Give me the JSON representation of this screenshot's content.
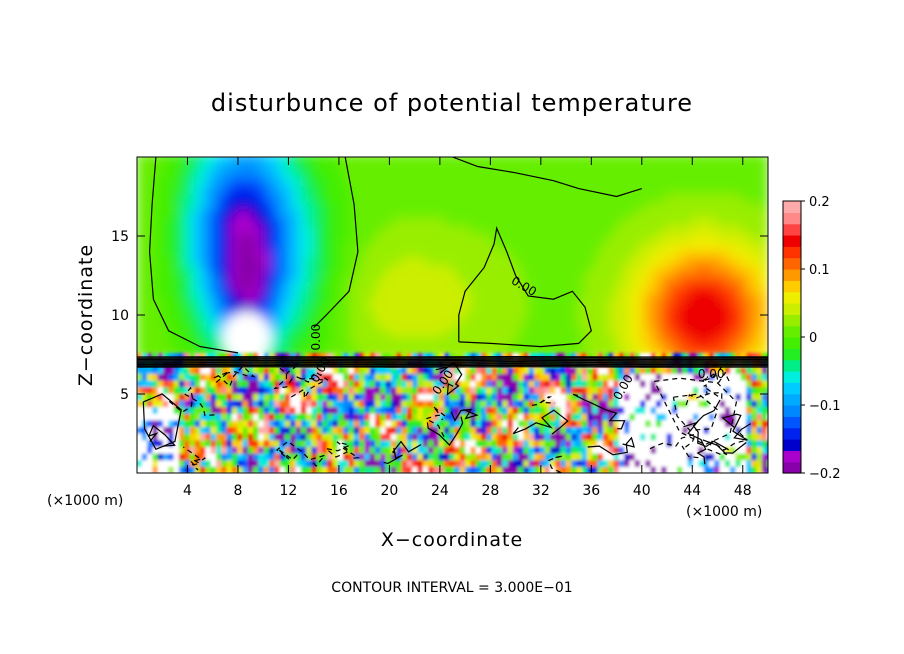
{
  "chart_data": {
    "type": "heatmap",
    "title": "disturbunce of potential temperature",
    "xlabel": "X−coordinate",
    "ylabel": "Z−coordinate",
    "x_unit": "(×1000 m)",
    "y_unit": "(×1000 m)",
    "xlim": [
      0,
      50
    ],
    "ylim": [
      0,
      20
    ],
    "x_ticks": [
      "4",
      "8",
      "12",
      "16",
      "20",
      "24",
      "28",
      "32",
      "36",
      "40",
      "44",
      "48"
    ],
    "x_tick_values": [
      4,
      8,
      12,
      16,
      20,
      24,
      28,
      32,
      36,
      40,
      44,
      48
    ],
    "y_ticks": [
      "5",
      "10",
      "15"
    ],
    "y_tick_values": [
      5,
      10,
      15
    ],
    "colorbar": {
      "min": -0.2,
      "max": 0.2,
      "tick_labels": [
        "0.2",
        "0.1",
        "0",
        "−0.1",
        "−0.2"
      ],
      "tick_values": [
        0.2,
        0.1,
        0,
        -0.1,
        -0.2
      ],
      "colors": [
        "#8800aa",
        "#aa00cc",
        "#0000cc",
        "#0022ee",
        "#0055ff",
        "#0088ff",
        "#00aaff",
        "#00ccff",
        "#00eedd",
        "#00ee88",
        "#22ee22",
        "#44ee00",
        "#66ee00",
        "#99ee00",
        "#ccee00",
        "#eeee00",
        "#ffcc00",
        "#ff9900",
        "#ff6600",
        "#ff3300",
        "#ee0000",
        "#ff4444",
        "#ff8888",
        "#ffaaaa"
      ]
    },
    "contour_labels": [
      "0.00",
      "0.00",
      "0.00",
      "0.00",
      "0.00",
      "0.00"
    ],
    "footer": "CONTOUR INTERVAL = 3.000E−01"
  }
}
